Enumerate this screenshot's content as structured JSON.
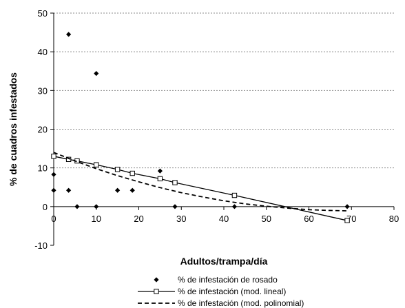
{
  "chart_data": {
    "type": "scatter",
    "title": "",
    "xlabel": "Adultos/trampa/día",
    "ylabel": "% de cuadros infestados",
    "xlim": [
      0,
      80
    ],
    "ylim": [
      -10,
      50
    ],
    "xticks": [
      0,
      10,
      20,
      30,
      40,
      50,
      60,
      70,
      80
    ],
    "yticks": [
      -10,
      0,
      10,
      20,
      30,
      40,
      50
    ],
    "grid": "horizontal dotted",
    "legend_position": "bottom",
    "series": [
      {
        "name": "% de infestación de rosado",
        "kind": "scatter",
        "marker": "diamond",
        "color": "#000000",
        "points": [
          [
            0,
            8.3
          ],
          [
            0,
            4.2
          ],
          [
            3.5,
            44.5
          ],
          [
            3.5,
            4.2
          ],
          [
            5.5,
            0
          ],
          [
            10,
            34.4
          ],
          [
            10,
            0
          ],
          [
            15,
            4.2
          ],
          [
            18.5,
            4.2
          ],
          [
            25,
            9.2
          ],
          [
            28.5,
            0
          ],
          [
            42.5,
            0
          ],
          [
            69,
            0
          ]
        ]
      },
      {
        "name": "% de infestación (mod. lineal)",
        "kind": "line",
        "style": "solid",
        "marker": "square-open",
        "color": "#000000",
        "points": [
          [
            0,
            13.0
          ],
          [
            3.5,
            12.2
          ],
          [
            5.5,
            11.8
          ],
          [
            10,
            10.8
          ],
          [
            15,
            9.6
          ],
          [
            18.5,
            8.6
          ],
          [
            25,
            7.2
          ],
          [
            28.5,
            6.2
          ],
          [
            42.5,
            2.9
          ],
          [
            69,
            -3.6
          ]
        ]
      },
      {
        "name": "% de infestación (mod. polinomial)",
        "kind": "line",
        "style": "dashed",
        "marker": "none",
        "color": "#000000",
        "points": [
          [
            0,
            14.0
          ],
          [
            5,
            11.8
          ],
          [
            10,
            9.8
          ],
          [
            15,
            8.0
          ],
          [
            20,
            6.4
          ],
          [
            25,
            4.9
          ],
          [
            30,
            3.6
          ],
          [
            35,
            2.5
          ],
          [
            40,
            1.5
          ],
          [
            45,
            0.7
          ],
          [
            50,
            0.1
          ],
          [
            55,
            -0.4
          ],
          [
            60,
            -0.8
          ],
          [
            65,
            -1.0
          ],
          [
            69,
            -1.1
          ]
        ]
      }
    ]
  }
}
